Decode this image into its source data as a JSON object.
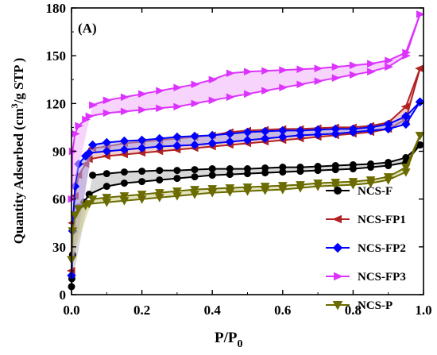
{
  "chart_data": {
    "type": "line",
    "panel_label": "(A)",
    "xlabel": {
      "main": "P/P",
      "sub": "0"
    },
    "ylabel": {
      "prefix": "Quantity Adsorbed (cm",
      "sup": "3",
      "suffix": "/g STP )"
    },
    "xlim": [
      0.0,
      1.0
    ],
    "ylim": [
      0,
      180
    ],
    "xticks": [
      "0.0",
      "0.2",
      "0.4",
      "0.6",
      "0.8",
      "1.0"
    ],
    "yticks": [
      "0",
      "30",
      "60",
      "90",
      "120",
      "150",
      "180"
    ],
    "legend_position": "bottom-right",
    "series": [
      {
        "name": "NCS-F",
        "color": "#000000",
        "fill": "#b8b8b8",
        "marker": "circle",
        "adsorption": [
          [
            0.0,
            5
          ],
          [
            0.001,
            10
          ],
          [
            0.003,
            25
          ],
          [
            0.006,
            40
          ],
          [
            0.01,
            50
          ],
          [
            0.02,
            55
          ],
          [
            0.035,
            58
          ],
          [
            0.05,
            63
          ],
          [
            0.1,
            68
          ],
          [
            0.15,
            70
          ],
          [
            0.2,
            71
          ],
          [
            0.25,
            72
          ],
          [
            0.3,
            73
          ],
          [
            0.35,
            74
          ],
          [
            0.4,
            75
          ],
          [
            0.45,
            75.5
          ],
          [
            0.5,
            76
          ],
          [
            0.55,
            76.5
          ],
          [
            0.6,
            77
          ],
          [
            0.65,
            77.5
          ],
          [
            0.7,
            78
          ],
          [
            0.75,
            78.5
          ],
          [
            0.8,
            79
          ],
          [
            0.85,
            80
          ],
          [
            0.9,
            81
          ],
          [
            0.95,
            83
          ],
          [
            0.99,
            94
          ]
        ],
        "desorption": [
          [
            0.99,
            94
          ],
          [
            0.95,
            86
          ],
          [
            0.9,
            83
          ],
          [
            0.85,
            82
          ],
          [
            0.8,
            81.5
          ],
          [
            0.75,
            81
          ],
          [
            0.7,
            80.5
          ],
          [
            0.65,
            80
          ],
          [
            0.6,
            80
          ],
          [
            0.55,
            79.5
          ],
          [
            0.5,
            79
          ],
          [
            0.45,
            79
          ],
          [
            0.4,
            79
          ],
          [
            0.35,
            78.5
          ],
          [
            0.3,
            78
          ],
          [
            0.25,
            78
          ],
          [
            0.2,
            77.5
          ],
          [
            0.15,
            77
          ],
          [
            0.1,
            76
          ],
          [
            0.06,
            75
          ]
        ]
      },
      {
        "name": "NCS-FP1",
        "color": "#b22222",
        "fill": "#e8a8a8",
        "marker": "triangle-left",
        "adsorption": [
          [
            0.0,
            15
          ],
          [
            0.003,
            45
          ],
          [
            0.01,
            62
          ],
          [
            0.02,
            75
          ],
          [
            0.04,
            82
          ],
          [
            0.05,
            85
          ],
          [
            0.1,
            87
          ],
          [
            0.15,
            88
          ],
          [
            0.2,
            89
          ],
          [
            0.25,
            90
          ],
          [
            0.3,
            91
          ],
          [
            0.35,
            92
          ],
          [
            0.4,
            93
          ],
          [
            0.45,
            94
          ],
          [
            0.5,
            95
          ],
          [
            0.55,
            96
          ],
          [
            0.6,
            97
          ],
          [
            0.65,
            98
          ],
          [
            0.7,
            99
          ],
          [
            0.75,
            100
          ],
          [
            0.8,
            101
          ],
          [
            0.85,
            102
          ],
          [
            0.9,
            104
          ],
          [
            0.95,
            110
          ],
          [
            0.99,
            142
          ]
        ],
        "desorption": [
          [
            0.99,
            142
          ],
          [
            0.95,
            118
          ],
          [
            0.9,
            108
          ],
          [
            0.85,
            106
          ],
          [
            0.8,
            105
          ],
          [
            0.75,
            105
          ],
          [
            0.7,
            104.5
          ],
          [
            0.65,
            104
          ],
          [
            0.6,
            104
          ],
          [
            0.55,
            103.5
          ],
          [
            0.5,
            103
          ],
          [
            0.45,
            102
          ],
          [
            0.4,
            100
          ],
          [
            0.35,
            99
          ],
          [
            0.3,
            98
          ],
          [
            0.25,
            97
          ],
          [
            0.2,
            96
          ],
          [
            0.15,
            95
          ],
          [
            0.1,
            93
          ],
          [
            0.06,
            92
          ]
        ]
      },
      {
        "name": "NCS-FP2",
        "color": "#0000ff",
        "fill": "#a8a8f0",
        "marker": "diamond",
        "adsorption": [
          [
            0.0,
            12
          ],
          [
            0.003,
            40
          ],
          [
            0.01,
            68
          ],
          [
            0.02,
            82
          ],
          [
            0.04,
            87
          ],
          [
            0.05,
            89
          ],
          [
            0.1,
            90
          ],
          [
            0.15,
            91
          ],
          [
            0.2,
            92
          ],
          [
            0.25,
            93
          ],
          [
            0.3,
            93.5
          ],
          [
            0.35,
            94
          ],
          [
            0.4,
            95
          ],
          [
            0.45,
            96
          ],
          [
            0.5,
            97
          ],
          [
            0.55,
            98
          ],
          [
            0.6,
            99
          ],
          [
            0.65,
            100
          ],
          [
            0.7,
            100.5
          ],
          [
            0.75,
            101
          ],
          [
            0.8,
            102
          ],
          [
            0.85,
            103
          ],
          [
            0.9,
            104
          ],
          [
            0.95,
            107
          ],
          [
            0.99,
            121
          ]
        ],
        "desorption": [
          [
            0.99,
            121
          ],
          [
            0.95,
            112
          ],
          [
            0.9,
            107
          ],
          [
            0.85,
            105
          ],
          [
            0.8,
            104
          ],
          [
            0.75,
            104
          ],
          [
            0.7,
            103.5
          ],
          [
            0.65,
            103
          ],
          [
            0.6,
            103
          ],
          [
            0.55,
            102.5
          ],
          [
            0.5,
            102
          ],
          [
            0.45,
            101
          ],
          [
            0.4,
            100
          ],
          [
            0.35,
            99.5
          ],
          [
            0.3,
            99
          ],
          [
            0.25,
            98
          ],
          [
            0.2,
            97
          ],
          [
            0.15,
            96.5
          ],
          [
            0.1,
            95.5
          ],
          [
            0.06,
            94
          ]
        ]
      },
      {
        "name": "NCS-FP3",
        "color": "#dd33ff",
        "fill": "#f0b0f8",
        "marker": "triangle-right",
        "adsorption": [
          [
            0.0,
            60
          ],
          [
            0.003,
            90
          ],
          [
            0.01,
            101
          ],
          [
            0.02,
            106
          ],
          [
            0.04,
            110
          ],
          [
            0.05,
            112
          ],
          [
            0.1,
            114
          ],
          [
            0.15,
            115
          ],
          [
            0.2,
            116
          ],
          [
            0.25,
            117
          ],
          [
            0.3,
            118
          ],
          [
            0.35,
            120
          ],
          [
            0.4,
            122
          ],
          [
            0.45,
            124
          ],
          [
            0.5,
            126
          ],
          [
            0.55,
            128
          ],
          [
            0.6,
            130
          ],
          [
            0.65,
            132
          ],
          [
            0.7,
            134
          ],
          [
            0.75,
            136
          ],
          [
            0.8,
            138
          ],
          [
            0.85,
            140
          ],
          [
            0.9,
            143
          ],
          [
            0.95,
            150
          ],
          [
            0.99,
            176
          ]
        ],
        "desorption": [
          [
            0.99,
            176
          ],
          [
            0.95,
            152
          ],
          [
            0.9,
            147
          ],
          [
            0.85,
            145
          ],
          [
            0.8,
            144
          ],
          [
            0.75,
            143
          ],
          [
            0.7,
            142
          ],
          [
            0.65,
            141.5
          ],
          [
            0.6,
            141
          ],
          [
            0.55,
            140.5
          ],
          [
            0.5,
            140
          ],
          [
            0.45,
            139
          ],
          [
            0.4,
            135
          ],
          [
            0.35,
            132
          ],
          [
            0.3,
            130
          ],
          [
            0.25,
            128
          ],
          [
            0.2,
            126
          ],
          [
            0.15,
            124
          ],
          [
            0.1,
            122
          ],
          [
            0.06,
            119
          ]
        ]
      },
      {
        "name": "NCS-P",
        "color": "#6b6b00",
        "fill": "#cccc88",
        "marker": "triangle-down",
        "adsorption": [
          [
            0.0,
            22
          ],
          [
            0.003,
            40
          ],
          [
            0.01,
            50
          ],
          [
            0.02,
            54
          ],
          [
            0.04,
            56
          ],
          [
            0.05,
            57
          ],
          [
            0.1,
            58
          ],
          [
            0.15,
            59
          ],
          [
            0.2,
            60
          ],
          [
            0.25,
            61
          ],
          [
            0.3,
            62
          ],
          [
            0.35,
            63
          ],
          [
            0.4,
            64
          ],
          [
            0.45,
            64.5
          ],
          [
            0.5,
            65
          ],
          [
            0.55,
            65.5
          ],
          [
            0.6,
            66
          ],
          [
            0.65,
            67
          ],
          [
            0.7,
            68
          ],
          [
            0.75,
            68.5
          ],
          [
            0.8,
            69
          ],
          [
            0.85,
            70
          ],
          [
            0.9,
            72
          ],
          [
            0.95,
            77
          ],
          [
            0.99,
            100
          ]
        ],
        "desorption": [
          [
            0.99,
            100
          ],
          [
            0.95,
            80
          ],
          [
            0.9,
            74
          ],
          [
            0.85,
            72
          ],
          [
            0.8,
            71
          ],
          [
            0.75,
            70.5
          ],
          [
            0.7,
            70
          ],
          [
            0.65,
            69
          ],
          [
            0.6,
            68.5
          ],
          [
            0.55,
            68
          ],
          [
            0.5,
            67.5
          ],
          [
            0.45,
            67
          ],
          [
            0.4,
            66.5
          ],
          [
            0.35,
            66
          ],
          [
            0.3,
            65
          ],
          [
            0.25,
            64
          ],
          [
            0.2,
            63
          ],
          [
            0.15,
            62
          ],
          [
            0.1,
            61
          ],
          [
            0.06,
            60
          ]
        ]
      }
    ]
  }
}
